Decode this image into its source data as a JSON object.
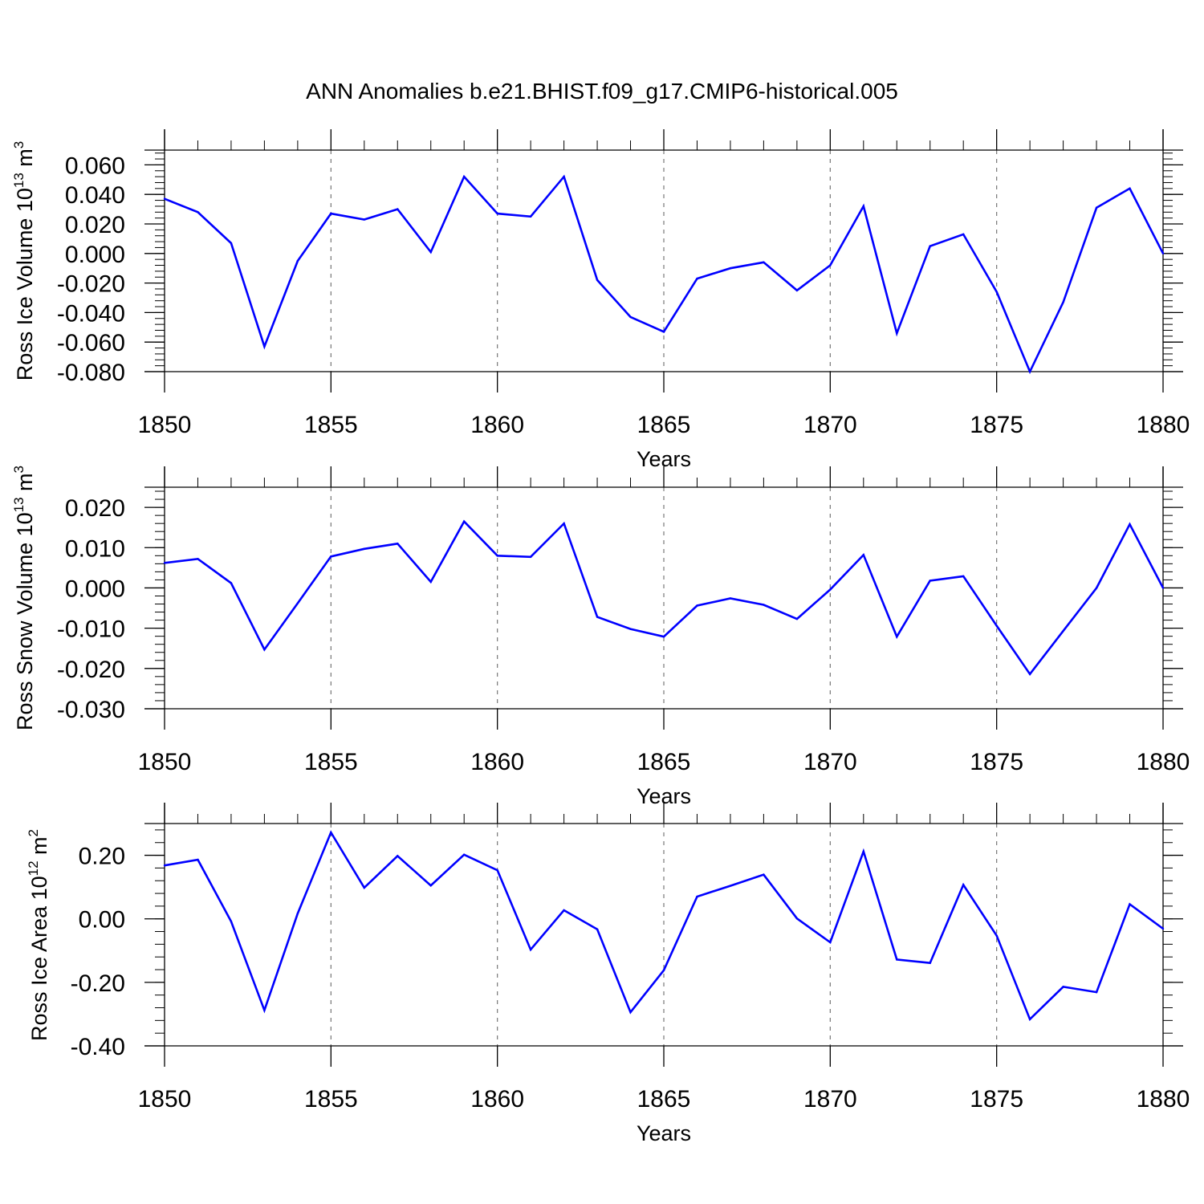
{
  "title": "ANN Anomalies b.e21.BHIST.f09_g17.CMIP6-historical.005",
  "colors": {
    "line": "#0000ff",
    "axis": "#000000",
    "grid": "#777777"
  },
  "chart_data": [
    {
      "type": "line",
      "ylabel_text": "Ross Ice Volume 10",
      "ylabel_exp": "13",
      "ylabel_unit": "m",
      "ylabel_unit_exp": "3",
      "xlabel": "Years",
      "xlim": [
        1850,
        1880
      ],
      "ylim": [
        -0.08,
        0.07
      ],
      "yticks": [
        0.06,
        0.04,
        0.02,
        0.0,
        -0.02,
        -0.04,
        -0.06,
        -0.08
      ],
      "ytick_labels": [
        "0.060",
        "0.040",
        "0.020",
        "0.000",
        "-0.020",
        "-0.040",
        "-0.060",
        "-0.080"
      ],
      "xticks": [
        1850,
        1855,
        1860,
        1865,
        1870,
        1875,
        1880
      ],
      "xtick_labels": [
        "1850",
        "1855",
        "1860",
        "1865",
        "1870",
        "1875",
        "1880"
      ],
      "grid": "vertical dashed at major x ticks",
      "x": [
        1850,
        1851,
        1852,
        1853,
        1854,
        1855,
        1856,
        1857,
        1858,
        1859,
        1860,
        1861,
        1862,
        1863,
        1864,
        1865,
        1866,
        1867,
        1868,
        1869,
        1870,
        1871,
        1872,
        1873,
        1874,
        1875,
        1876,
        1877,
        1878,
        1879,
        1880
      ],
      "values": [
        0.037,
        0.028,
        0.007,
        -0.063,
        -0.005,
        0.027,
        0.023,
        0.03,
        0.001,
        0.052,
        0.027,
        0.025,
        0.052,
        -0.018,
        -0.043,
        -0.053,
        -0.017,
        -0.01,
        -0.006,
        -0.025,
        -0.008,
        0.032,
        -0.054,
        0.005,
        0.013,
        -0.026,
        -0.08,
        -0.033,
        0.031,
        0.044,
        0.0
      ]
    },
    {
      "type": "line",
      "ylabel_text": "Ross Snow Volume 10",
      "ylabel_exp": "13",
      "ylabel_unit": "m",
      "ylabel_unit_exp": "3",
      "xlabel": "Years",
      "xlim": [
        1850,
        1880
      ],
      "ylim": [
        -0.03,
        0.025
      ],
      "yticks": [
        0.02,
        0.01,
        0.0,
        -0.01,
        -0.02,
        -0.03
      ],
      "ytick_labels": [
        "0.020",
        "0.010",
        "0.000",
        "-0.010",
        "-0.020",
        "-0.030"
      ],
      "xticks": [
        1850,
        1855,
        1860,
        1865,
        1870,
        1875,
        1880
      ],
      "xtick_labels": [
        "1850",
        "1855",
        "1860",
        "1865",
        "1870",
        "1875",
        "1880"
      ],
      "grid": "vertical dashed at major x ticks",
      "x": [
        1850,
        1851,
        1852,
        1853,
        1854,
        1855,
        1856,
        1857,
        1858,
        1859,
        1860,
        1861,
        1862,
        1863,
        1864,
        1865,
        1866,
        1867,
        1868,
        1869,
        1870,
        1871,
        1872,
        1873,
        1874,
        1875,
        1876,
        1877,
        1878,
        1879,
        1880
      ],
      "values": [
        0.0062,
        0.0072,
        0.0012,
        -0.0153,
        -0.0038,
        0.0078,
        0.0097,
        0.011,
        0.0015,
        0.0165,
        0.008,
        0.0077,
        0.016,
        -0.0072,
        -0.0102,
        -0.0121,
        -0.0044,
        -0.0026,
        -0.0042,
        -0.0077,
        -0.0004,
        0.0082,
        -0.0121,
        0.0018,
        0.0029,
        -0.0094,
        -0.0214,
        -0.0107,
        0.0,
        0.0158,
        0.0
      ]
    },
    {
      "type": "line",
      "ylabel_text": "Ross Ice Area 10",
      "ylabel_exp": "12",
      "ylabel_unit": "m",
      "ylabel_unit_exp": "2",
      "xlabel": "Years",
      "xlim": [
        1850,
        1880
      ],
      "ylim": [
        -0.4,
        0.3
      ],
      "yticks": [
        0.2,
        0.0,
        -0.2,
        -0.4
      ],
      "ytick_labels": [
        "0.20",
        "0.00",
        "-0.20",
        "-0.40"
      ],
      "xticks": [
        1850,
        1855,
        1860,
        1865,
        1870,
        1875,
        1880
      ],
      "xtick_labels": [
        "1850",
        "1855",
        "1860",
        "1865",
        "1870",
        "1875",
        "1880"
      ],
      "grid": "vertical dashed at major x ticks",
      "x": [
        1850,
        1851,
        1852,
        1853,
        1854,
        1855,
        1856,
        1857,
        1858,
        1859,
        1860,
        1861,
        1862,
        1863,
        1864,
        1865,
        1866,
        1867,
        1868,
        1869,
        1870,
        1871,
        1872,
        1873,
        1874,
        1875,
        1876,
        1877,
        1878,
        1879,
        1880
      ],
      "values": [
        0.168,
        0.186,
        -0.008,
        -0.288,
        0.017,
        0.272,
        0.098,
        0.198,
        0.105,
        0.202,
        0.153,
        -0.097,
        0.027,
        -0.033,
        -0.294,
        -0.162,
        0.07,
        0.104,
        0.139,
        0.001,
        -0.074,
        0.212,
        -0.128,
        -0.139,
        0.107,
        -0.053,
        -0.316,
        -0.214,
        -0.231,
        0.046,
        -0.031
      ]
    }
  ]
}
